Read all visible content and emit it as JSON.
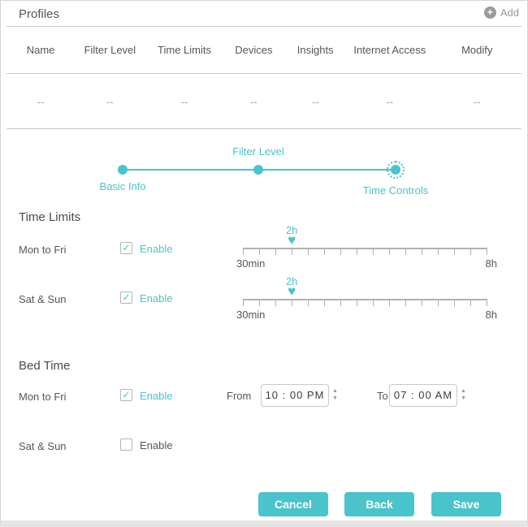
{
  "header": {
    "title": "Profiles",
    "add_label": "Add"
  },
  "table": {
    "columns": [
      "Name",
      "Filter Level",
      "Time Limits",
      "Devices",
      "Insights",
      "Internet Access",
      "Modify"
    ],
    "placeholder_row": [
      "--",
      "--",
      "--",
      "--",
      "--",
      "--",
      "--"
    ]
  },
  "stepper": {
    "steps": [
      {
        "label": "Basic Info"
      },
      {
        "label": "Filter Level"
      },
      {
        "label": "Time Controls"
      }
    ],
    "current_step": "Time Controls"
  },
  "time_limits": {
    "heading": "Time Limits",
    "rows": [
      {
        "label": "Mon to Fri",
        "enable_label": "Enable",
        "enabled": true,
        "value_label": "2h",
        "value_percent": 20,
        "min_label": "30min",
        "max_label": "8h"
      },
      {
        "label": "Sat & Sun",
        "enable_label": "Enable",
        "enabled": true,
        "value_label": "2h",
        "value_percent": 20,
        "min_label": "30min",
        "max_label": "8h"
      }
    ]
  },
  "bed_time": {
    "heading": "Bed Time",
    "rows": [
      {
        "label": "Mon to Fri",
        "enable_label": "Enable",
        "enabled": true,
        "from_label": "From",
        "from_value": "10 : 00 PM",
        "to_label": "To",
        "to_value": "07 : 00 AM"
      },
      {
        "label": "Sat & Sun",
        "enable_label": "Enable",
        "enabled": false
      }
    ]
  },
  "footer": {
    "cancel_label": "Cancel",
    "back_label": "Back",
    "save_label": "Save"
  },
  "icons": {
    "add_icon": "+",
    "check_icon": "✓",
    "slider_handle_icon": "♥",
    "spin_up_icon": "▲",
    "spin_down_icon": "▼"
  },
  "colors": {
    "accent": "#4bc3ca",
    "text": "#565656",
    "muted": "#9a9a9a",
    "divider": "#c9c9c9",
    "ruler": "#b0b0b0",
    "add_icon_bg": "#9a9a9a"
  }
}
